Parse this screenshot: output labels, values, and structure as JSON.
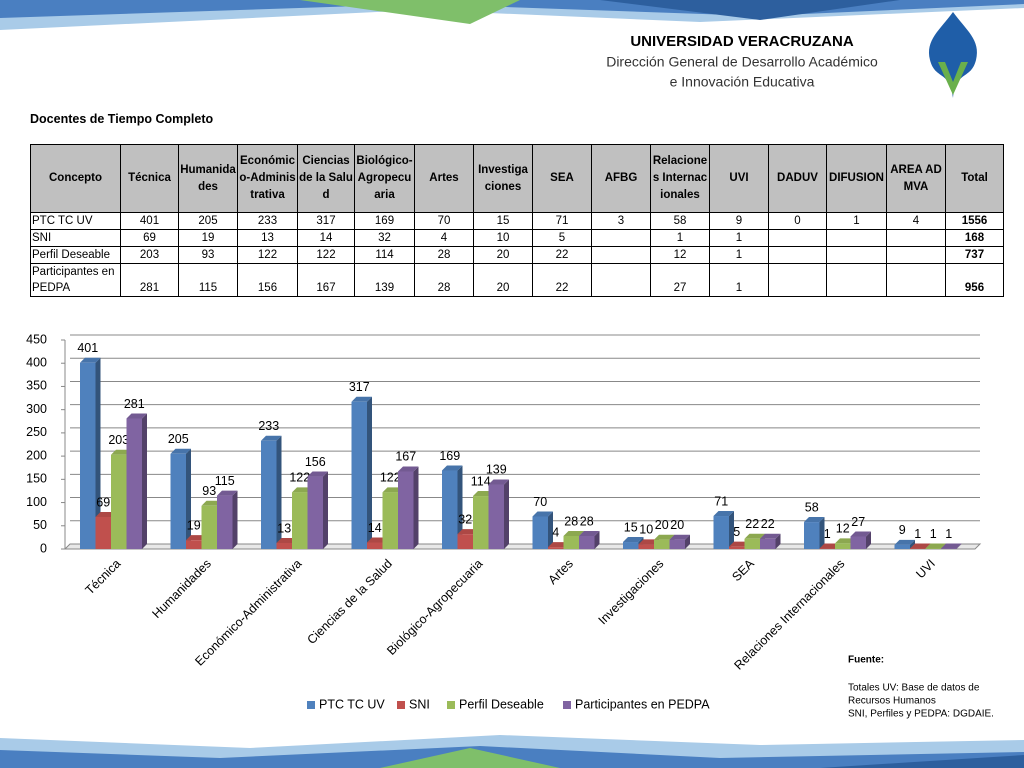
{
  "header": {
    "title": "UNIVERSIDAD VERACRUZANA",
    "line1": "Dirección General de Desarrollo Académico",
    "line2": "e Innovación Educativa"
  },
  "table": {
    "title": "Docentes de Tiempo Completo",
    "header": [
      "Concepto",
      "Técnica",
      "Humanidades",
      "Económico-Administrativa",
      "Ciencias de la Salud",
      "Biológico-Agropecuaria",
      "Artes",
      "Investigaciones",
      "SEA",
      "AFBG",
      "Relaciones Internacionales",
      "UVI",
      "DADUV",
      "DIFUSION",
      "AREA ADMVA",
      "Total"
    ],
    "rows": [
      [
        "PTC TC UV",
        401,
        205,
        233,
        317,
        169,
        70,
        15,
        71,
        3,
        58,
        9,
        0,
        1,
        4,
        1556
      ],
      [
        "SNI",
        69,
        19,
        13,
        14,
        32,
        4,
        10,
        5,
        null,
        1,
        1,
        null,
        null,
        null,
        168
      ],
      [
        "Perfil Deseable",
        203,
        93,
        122,
        122,
        114,
        28,
        20,
        22,
        null,
        12,
        1,
        null,
        null,
        null,
        737
      ],
      [
        "Participantes en PEDPA",
        281,
        115,
        156,
        167,
        139,
        28,
        20,
        22,
        null,
        27,
        1,
        null,
        null,
        null,
        956
      ]
    ]
  },
  "chart_data": {
    "type": "bar",
    "categories": [
      "Técnica",
      "Humanidades",
      "Económico-Administrativa",
      "Ciencias de la Salud",
      "Biológico-Agropecuaria",
      "Artes",
      "Investigaciones",
      "SEA",
      "Relaciones Internacionales",
      "UVI"
    ],
    "series": [
      {
        "name": "PTC TC UV",
        "color": "#4f81bd",
        "values": [
          401,
          205,
          233,
          317,
          169,
          70,
          15,
          71,
          58,
          9
        ]
      },
      {
        "name": "SNI",
        "color": "#c0504d",
        "values": [
          69,
          19,
          13,
          14,
          32,
          4,
          10,
          5,
          1,
          1
        ]
      },
      {
        "name": "Perfil Deseable",
        "color": "#9bbb59",
        "values": [
          203,
          93,
          122,
          122,
          114,
          28,
          20,
          22,
          12,
          1
        ]
      },
      {
        "name": "Participantes en PEDPA",
        "color": "#8064a2",
        "values": [
          281,
          115,
          156,
          167,
          139,
          28,
          20,
          22,
          27,
          1
        ]
      }
    ],
    "ylim": [
      0,
      450
    ],
    "yticks": [
      0,
      50,
      100,
      150,
      200,
      250,
      300,
      350,
      400,
      450
    ],
    "grid": true
  },
  "source": {
    "title": "Fuente:",
    "line1": "Totales UV: Base de datos de",
    "line2": "Recursos Humanos",
    "line3": "SNI, Perfiles y PEDPA: DGDAIE."
  }
}
